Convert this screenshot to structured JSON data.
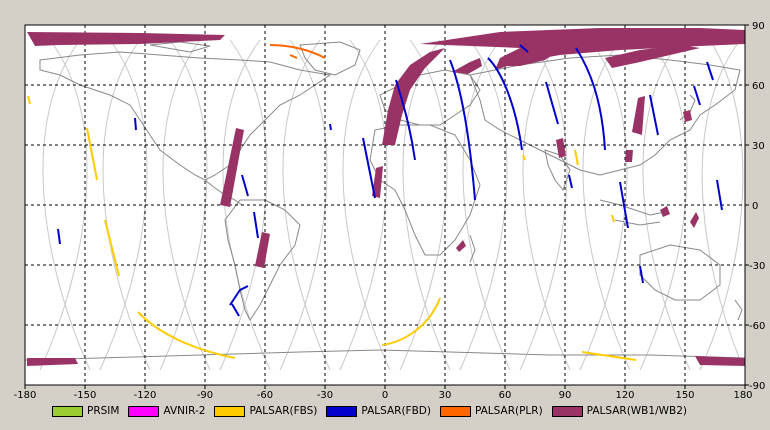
{
  "axes": {
    "x_ticks": [
      "-180",
      "-150",
      "-120",
      "-90",
      "-60",
      "-30",
      "0",
      "30",
      "60",
      "90",
      "120",
      "150",
      "180"
    ],
    "y_ticks": [
      "90",
      "60",
      "30",
      "0",
      "-30",
      "-60",
      "-90"
    ]
  },
  "legend": [
    {
      "label": "PRSIM",
      "color": "#9acd32"
    },
    {
      "label": "AVNIR-2",
      "color": "#ff00ff"
    },
    {
      "label": "PALSAR(FBS)",
      "color": "#ffcc00"
    },
    {
      "label": "PALSAR(FBD)",
      "color": "#0000cc"
    },
    {
      "label": "PALSAR(PLR)",
      "color": "#ff6600"
    },
    {
      "label": "PALSAR(WB1/WB2)",
      "color": "#993366"
    }
  ],
  "colors": {
    "background": "#d4d0c8",
    "plot_area": "#ffffff",
    "coastline": "#888888",
    "orbit_track": "#c8c8c8",
    "grid": "#000000"
  }
}
